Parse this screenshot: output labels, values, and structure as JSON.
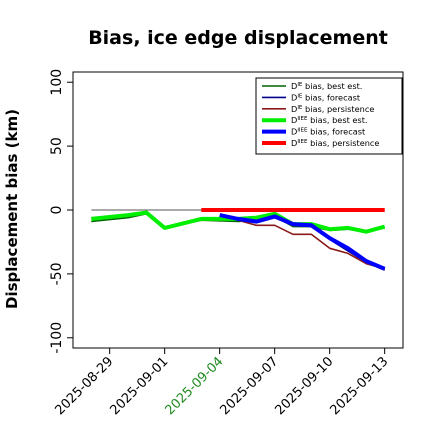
{
  "chart_data": {
    "type": "line",
    "title": "Bias, ice edge displacement",
    "xlabel": "",
    "ylabel": "Displacement bias (km)",
    "ylim": [
      -108,
      108
    ],
    "y_ticks": [
      -100,
      -50,
      0,
      50,
      100
    ],
    "x_ticks": [
      "2025-08-29",
      "2025-09-01",
      "2025-09-04",
      "2025-09-07",
      "2025-09-10",
      "2025-09-13"
    ],
    "x_tick_colors": [
      "#000000",
      "#000000",
      "#228B22",
      "#000000",
      "#000000",
      "#000000"
    ],
    "x_dates": [
      "2025-08-28",
      "2025-08-30",
      "2025-08-31",
      "2025-09-01",
      "2025-09-02",
      "2025-09-03",
      "2025-09-04",
      "2025-09-05",
      "2025-09-06",
      "2025-09-07",
      "2025-09-08",
      "2025-09-09",
      "2025-09-10",
      "2025-09-11",
      "2025-09-12",
      "2025-09-13"
    ],
    "reference_line": {
      "y": 0,
      "color": "#555555"
    },
    "legend_position": "top-right",
    "series": [
      {
        "name": "D^IE bias, best est.",
        "name_base": "D",
        "name_sup": "IE",
        "name_rest": " bias, best est.",
        "color": "#006400",
        "width": 1.6,
        "x": [
          "2025-08-28",
          "2025-08-30",
          "2025-08-31",
          "2025-09-01",
          "2025-09-03",
          "2025-09-05",
          "2025-09-06",
          "2025-09-07",
          "2025-09-08",
          "2025-09-09",
          "2025-09-10",
          "2025-09-11",
          "2025-09-12",
          "2025-09-13"
        ],
        "values": [
          -9,
          -6,
          -3,
          -14,
          -8,
          -9,
          -8,
          -5,
          -13,
          -13,
          -16,
          -15,
          -17,
          -14
        ]
      },
      {
        "name": "D^IE bias, forecast",
        "name_base": "D",
        "name_sup": "IE",
        "name_rest": " bias, forecast",
        "color": "#00008B",
        "width": 1.6,
        "x": [
          "2025-09-04",
          "2025-09-05",
          "2025-09-06",
          "2025-09-07",
          "2025-09-08",
          "2025-09-09",
          "2025-09-10",
          "2025-09-11",
          "2025-09-12",
          "2025-09-13"
        ],
        "values": [
          -5,
          -8,
          -10,
          -6,
          -12,
          -13,
          -23,
          -32,
          -41,
          -47
        ]
      },
      {
        "name": "D^IE bias, persistence",
        "name_base": "D",
        "name_sup": "IE",
        "name_rest": " bias, persistence",
        "color": "#8B1A1A",
        "width": 1.6,
        "x": [
          "2025-09-04",
          "2025-09-05",
          "2025-09-06",
          "2025-09-07",
          "2025-09-08",
          "2025-09-09",
          "2025-09-10",
          "2025-09-11",
          "2025-09-12",
          "2025-09-13"
        ],
        "values": [
          -5,
          -8,
          -12,
          -12,
          -19,
          -19,
          -30,
          -34,
          -42,
          -46
        ]
      },
      {
        "name": "D^IIEE bias, best est.",
        "name_base": "D",
        "name_sup": "IIEE",
        "name_rest": " bias, best est.",
        "color": "#00EE00",
        "width": 4,
        "x": [
          "2025-08-28",
          "2025-08-30",
          "2025-08-31",
          "2025-09-01",
          "2025-09-03",
          "2025-09-05",
          "2025-09-06",
          "2025-09-07",
          "2025-09-08",
          "2025-09-09",
          "2025-09-10",
          "2025-09-11",
          "2025-09-12",
          "2025-09-13"
        ],
        "values": [
          -7,
          -4,
          -2,
          -14,
          -7,
          -7,
          -6,
          -3,
          -11,
          -11,
          -15,
          -14,
          -17,
          -13
        ]
      },
      {
        "name": "D^IIEE bias, forecast",
        "name_base": "D",
        "name_sup": "IIEE",
        "name_rest": " bias, forecast",
        "color": "#0000FF",
        "width": 4,
        "x": [
          "2025-09-04",
          "2025-09-05",
          "2025-09-06",
          "2025-09-07",
          "2025-09-08",
          "2025-09-09",
          "2025-09-10",
          "2025-09-11",
          "2025-09-12",
          "2025-09-13"
        ],
        "values": [
          -4,
          -7,
          -9,
          -5,
          -11,
          -12,
          -22,
          -30,
          -40,
          -46
        ]
      },
      {
        "name": "D^IIEE bias, persistence",
        "name_base": "D",
        "name_sup": "IIEE",
        "name_rest": " bias, persistence",
        "color": "#FF0000",
        "width": 4,
        "x": [
          "2025-09-03",
          "2025-09-04",
          "2025-09-05",
          "2025-09-06",
          "2025-09-07",
          "2025-09-08",
          "2025-09-09",
          "2025-09-10",
          "2025-09-11",
          "2025-09-12",
          "2025-09-13"
        ],
        "values": [
          0,
          0,
          0,
          0,
          0,
          0,
          0,
          0,
          0,
          0,
          0
        ]
      }
    ]
  }
}
